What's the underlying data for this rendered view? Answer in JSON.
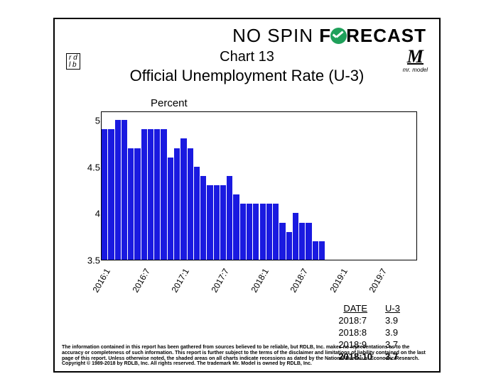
{
  "brand": {
    "pre": "NO ",
    "spin": "SPIN",
    "fore": " F",
    "cast": "RECAST"
  },
  "badges": {
    "rdlb_top": "r d",
    "rdlb_bot": "l b",
    "mrmodel_m": "M",
    "mrmodel_sub": "mr. model"
  },
  "chart": {
    "type": "bar",
    "title": "Chart 13",
    "subtitle": "Official Unemployment Rate (U-3)",
    "y_unit": "Percent",
    "ylim": [
      3.5,
      5.1
    ],
    "yticks": [
      3.5,
      4,
      4.5,
      5
    ],
    "ytick_labels": [
      "3.5",
      "4",
      "4.5",
      "5"
    ],
    "bar_color": "#1a1ae0",
    "background_color": "#ffffff",
    "border_color": "#000000",
    "n_slots": 48,
    "xtick_positions": [
      0,
      6,
      12,
      18,
      24,
      30,
      36,
      42
    ],
    "xtick_labels": [
      "2016:1",
      "2016:7",
      "2017:1",
      "2017:7",
      "2018:1",
      "2018:7",
      "2019:1",
      "2019:7"
    ],
    "values": [
      4.9,
      4.9,
      5.0,
      5.0,
      4.7,
      4.7,
      4.9,
      4.9,
      4.9,
      4.9,
      4.6,
      4.7,
      4.8,
      4.7,
      4.5,
      4.4,
      4.3,
      4.3,
      4.3,
      4.4,
      4.2,
      4.1,
      4.1,
      4.1,
      4.1,
      4.1,
      4.1,
      3.9,
      3.8,
      4.0,
      3.9,
      3.9,
      3.7,
      3.7
    ],
    "title_fontsize": 20,
    "subtitle_fontsize": 22,
    "axis_fontsize": 13
  },
  "table": {
    "headers": [
      "DATE",
      "U-3"
    ],
    "rows": [
      {
        "date": "2018:7",
        "val": "3.9",
        "bold": false
      },
      {
        "date": "2018:8",
        "val": "3.9",
        "bold": false
      },
      {
        "date": "2018:9",
        "val": "3.7",
        "bold": false
      },
      {
        "date": "2018:10",
        "val": "3.7",
        "bold": true
      }
    ]
  },
  "footnote": "The information contained in this report has been gathered from sources believed to be reliable, but RDLB, Inc. makes no representations as to the accuracy or completeness of such information. This report is further subject to the terms of the disclaimer and limitations of liability contained on the last page of this report. Unless otherwise noted, the shaded areas on all charts indicate recessions as dated by the National Bureau of Economic Research. Copyright © 1989-2018 by RDLB, Inc. All rights reserved. The trademark Mr. Model is owned by RDLB, Inc."
}
